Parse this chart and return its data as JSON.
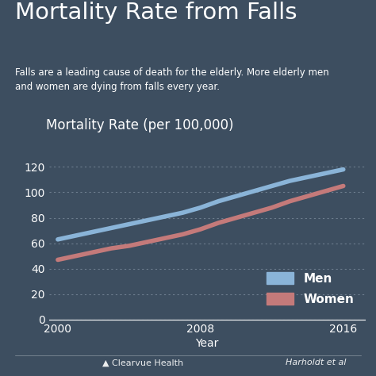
{
  "title": "Mortality Rate from Falls",
  "subtitle": "Falls are a leading cause of death for the elderly. More elderly men\nand women are dying from falls every year.",
  "chart_label": "Mortality Rate (per 100,000)",
  "xlabel": "Year",
  "footer_left": "▲ Clearvue Health",
  "footer_right": "Harholdt et al",
  "bg_color": "#3d4e60",
  "chart_bg_color": "#3d4e60",
  "text_color": "#ffffff",
  "grid_color": "#7a8a9a",
  "men_color": "#8ab4d8",
  "women_color": "#c47a7a",
  "men_label": "Men",
  "women_label": "Women",
  "years": [
    2000,
    2001,
    2002,
    2003,
    2004,
    2005,
    2006,
    2007,
    2008,
    2009,
    2010,
    2011,
    2012,
    2013,
    2014,
    2015,
    2016
  ],
  "men_values": [
    63,
    66,
    69,
    72,
    75,
    78,
    81,
    84,
    88,
    93,
    97,
    101,
    105,
    109,
    112,
    115,
    118
  ],
  "women_values": [
    47,
    50,
    53,
    56,
    58,
    61,
    64,
    67,
    71,
    76,
    80,
    84,
    88,
    93,
    97,
    101,
    105
  ],
  "ylim": [
    0,
    130
  ],
  "yticks": [
    0,
    20,
    40,
    60,
    80,
    100,
    120
  ],
  "xticks": [
    2000,
    2008,
    2016
  ],
  "title_fontsize": 21,
  "subtitle_fontsize": 8.5,
  "chart_label_fontsize": 12,
  "axis_fontsize": 10,
  "legend_fontsize": 11,
  "footer_fontsize": 8
}
